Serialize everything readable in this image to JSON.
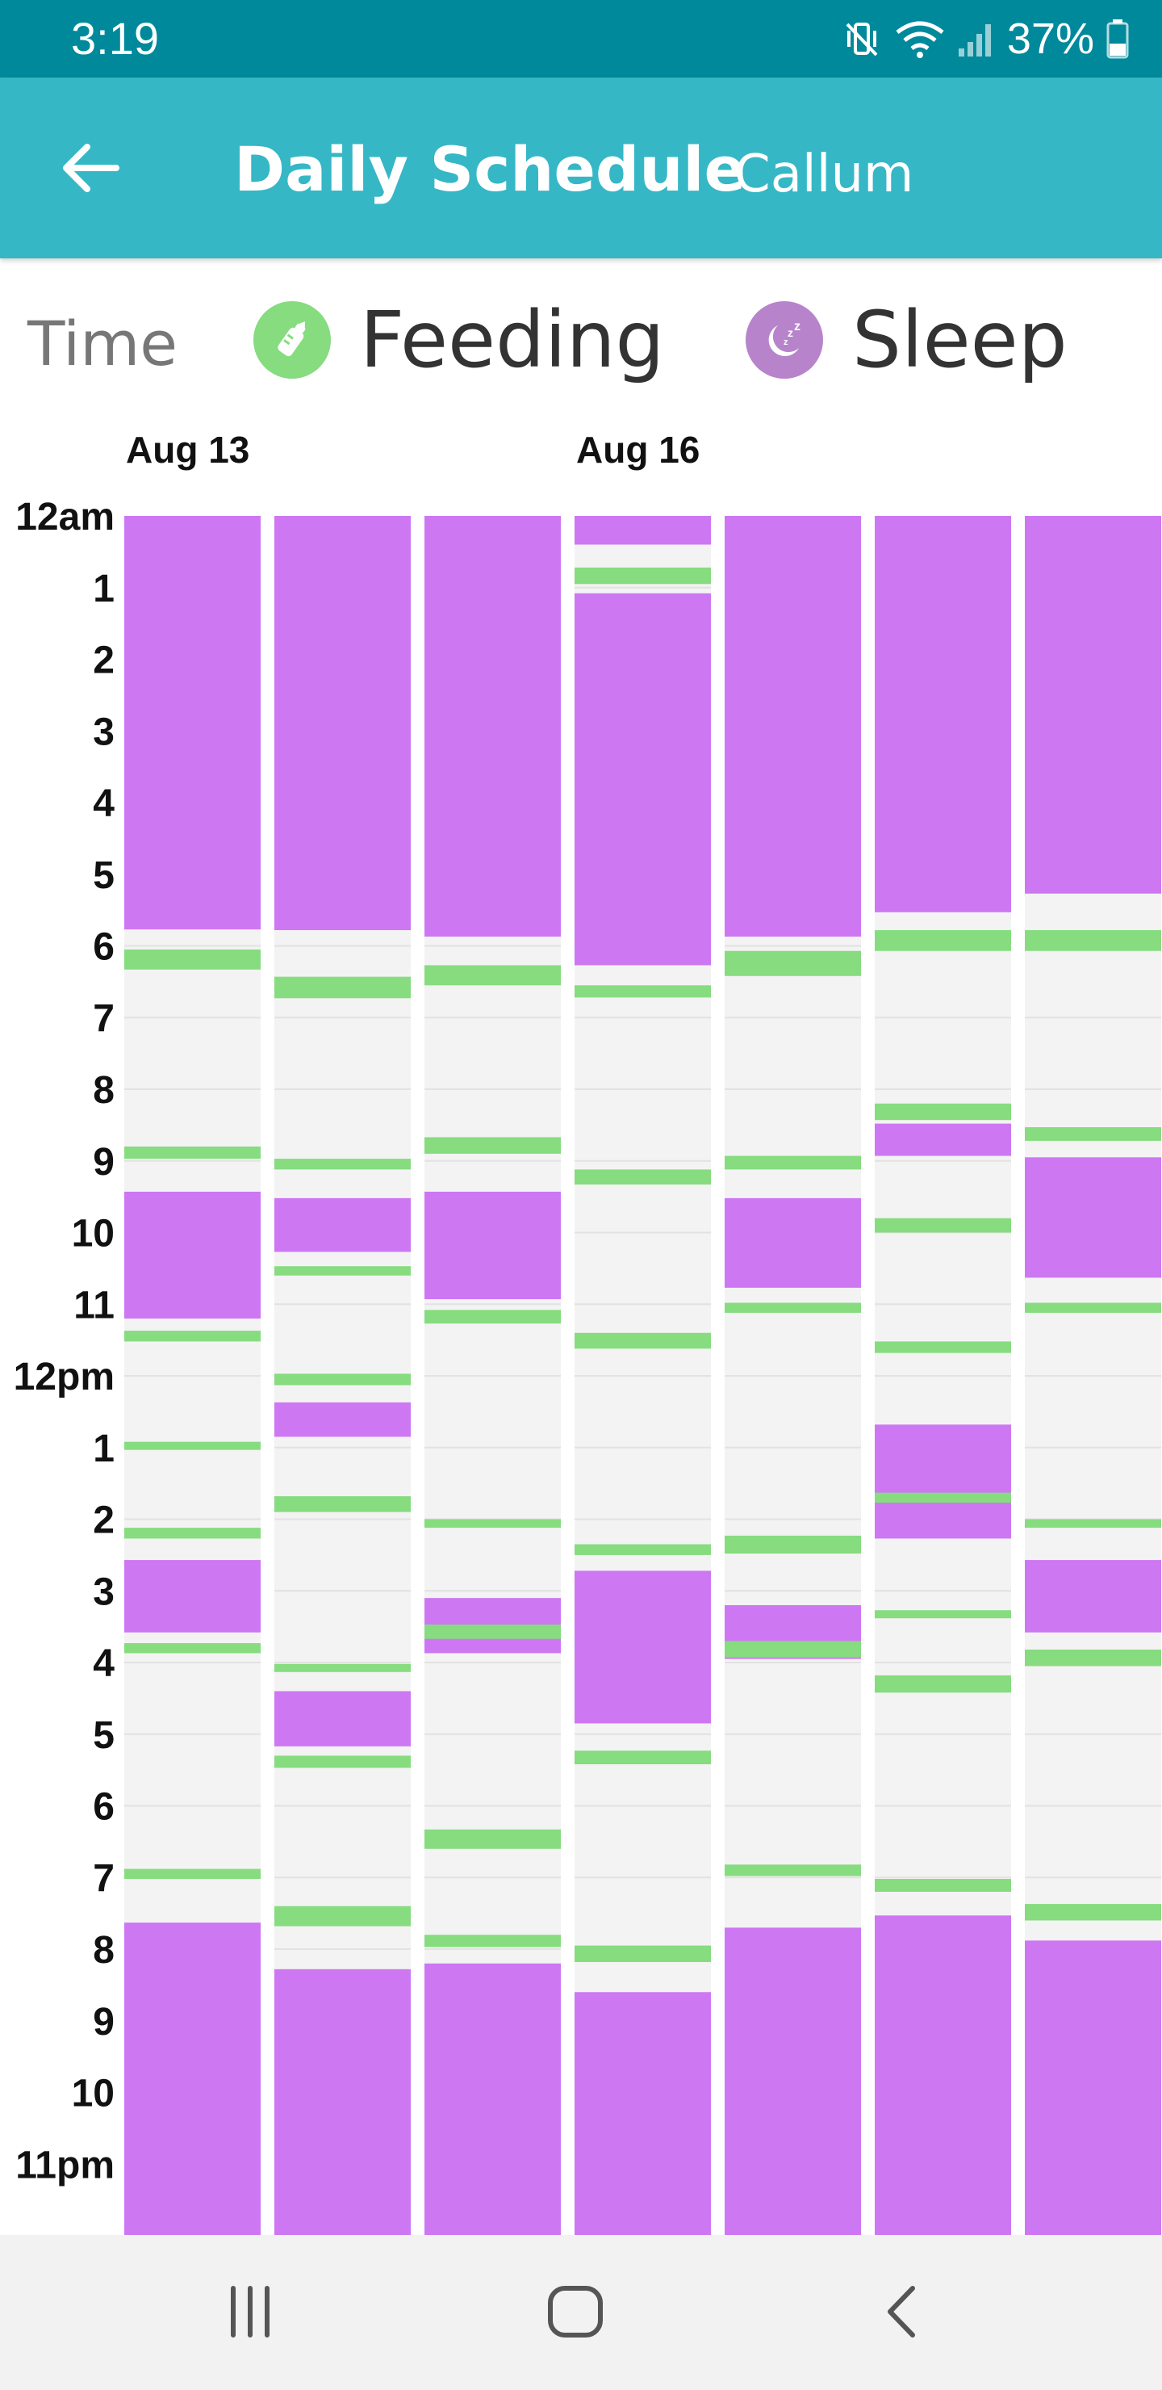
{
  "status_bar": {
    "time": "3:19",
    "battery": "37%"
  },
  "app_bar": {
    "title": "Daily Schedule",
    "subtitle": "Callum"
  },
  "legend": {
    "time_label": "Time",
    "feeding": {
      "label": "Feeding",
      "color": "#86dc7f"
    },
    "sleep": {
      "label": "Sleep",
      "color": "#cd77f3"
    }
  },
  "chart_data": {
    "type": "timeline",
    "date_labels": [
      {
        "text": "Aug 13",
        "column": 0
      },
      {
        "text": "Aug 16",
        "column": 3
      }
    ],
    "time_axis_labels": [
      "12am",
      "1",
      "2",
      "3",
      "4",
      "5",
      "6",
      "7",
      "8",
      "9",
      "10",
      "11",
      "12pm",
      "1",
      "2",
      "3",
      "4",
      "5",
      "6",
      "7",
      "8",
      "9",
      "10",
      "11pm"
    ],
    "y_range_hours": [
      0,
      24
    ],
    "days": [
      {
        "sleep": [
          [
            0,
            5.77
          ],
          [
            9.43,
            11.2
          ],
          [
            14.57,
            15.58
          ],
          [
            19.63,
            24
          ]
        ],
        "feeding": [
          [
            6.05,
            6.33
          ],
          [
            8.8,
            8.97
          ],
          [
            11.37,
            11.52
          ],
          [
            12.92,
            13.02
          ],
          [
            14.12,
            14.27
          ],
          [
            15.73,
            15.87
          ],
          [
            18.88,
            19.02
          ]
        ]
      },
      {
        "sleep": [
          [
            0,
            5.78
          ],
          [
            9.52,
            10.27
          ],
          [
            12.37,
            12.85
          ],
          [
            16.4,
            17.17
          ],
          [
            20.28,
            24
          ]
        ],
        "feeding": [
          [
            6.43,
            6.73
          ],
          [
            8.97,
            9.12
          ],
          [
            10.47,
            10.6
          ],
          [
            11.97,
            12.13
          ],
          [
            13.68,
            13.9
          ],
          [
            16.02,
            16.12
          ],
          [
            17.3,
            17.47
          ],
          [
            19.4,
            19.68
          ]
        ]
      },
      {
        "sleep": [
          [
            0,
            5.87
          ],
          [
            9.43,
            10.93
          ],
          [
            15.1,
            15.87
          ],
          [
            20.2,
            24
          ]
        ],
        "feeding": [
          [
            6.27,
            6.55
          ],
          [
            8.67,
            8.9
          ],
          [
            11.08,
            11.27
          ],
          [
            14.0,
            14.12
          ],
          [
            15.47,
            15.67
          ],
          [
            18.33,
            18.6
          ],
          [
            19.8,
            19.97
          ]
        ]
      },
      {
        "sleep": [
          [
            0,
            0.4
          ],
          [
            1.08,
            6.27
          ],
          [
            14.72,
            16.85
          ],
          [
            20.6,
            24
          ]
        ],
        "feeding": [
          [
            0.72,
            0.95
          ],
          [
            6.55,
            6.72
          ],
          [
            9.12,
            9.33
          ],
          [
            11.4,
            11.62
          ],
          [
            14.35,
            14.5
          ],
          [
            17.23,
            17.42
          ],
          [
            19.95,
            20.18
          ]
        ]
      },
      {
        "sleep": [
          [
            0,
            5.87
          ],
          [
            9.52,
            10.77
          ],
          [
            15.2,
            15.95
          ],
          [
            19.7,
            24
          ]
        ],
        "feeding": [
          [
            6.07,
            6.42
          ],
          [
            8.93,
            9.12
          ],
          [
            10.98,
            11.12
          ],
          [
            14.23,
            14.48
          ],
          [
            15.7,
            15.93
          ],
          [
            18.82,
            18.98
          ]
        ]
      },
      {
        "sleep": [
          [
            0,
            5.53
          ],
          [
            8.48,
            8.93
          ],
          [
            12.68,
            14.27
          ],
          [
            19.53,
            24
          ]
        ],
        "feeding": [
          [
            5.78,
            6.07
          ],
          [
            8.2,
            8.43
          ],
          [
            9.8,
            10.0
          ],
          [
            11.52,
            11.68
          ],
          [
            13.63,
            13.77
          ],
          [
            15.27,
            15.37
          ],
          [
            16.18,
            16.42
          ],
          [
            19.02,
            19.2
          ]
        ]
      },
      {
        "sleep": [
          [
            0,
            5.27
          ],
          [
            8.95,
            10.63
          ],
          [
            14.57,
            15.58
          ],
          [
            19.88,
            24
          ]
        ],
        "feeding": [
          [
            5.78,
            6.07
          ],
          [
            8.53,
            8.72
          ],
          [
            10.98,
            11.12
          ],
          [
            14.0,
            14.12
          ],
          [
            15.82,
            16.05
          ],
          [
            19.37,
            19.6
          ]
        ]
      }
    ]
  }
}
